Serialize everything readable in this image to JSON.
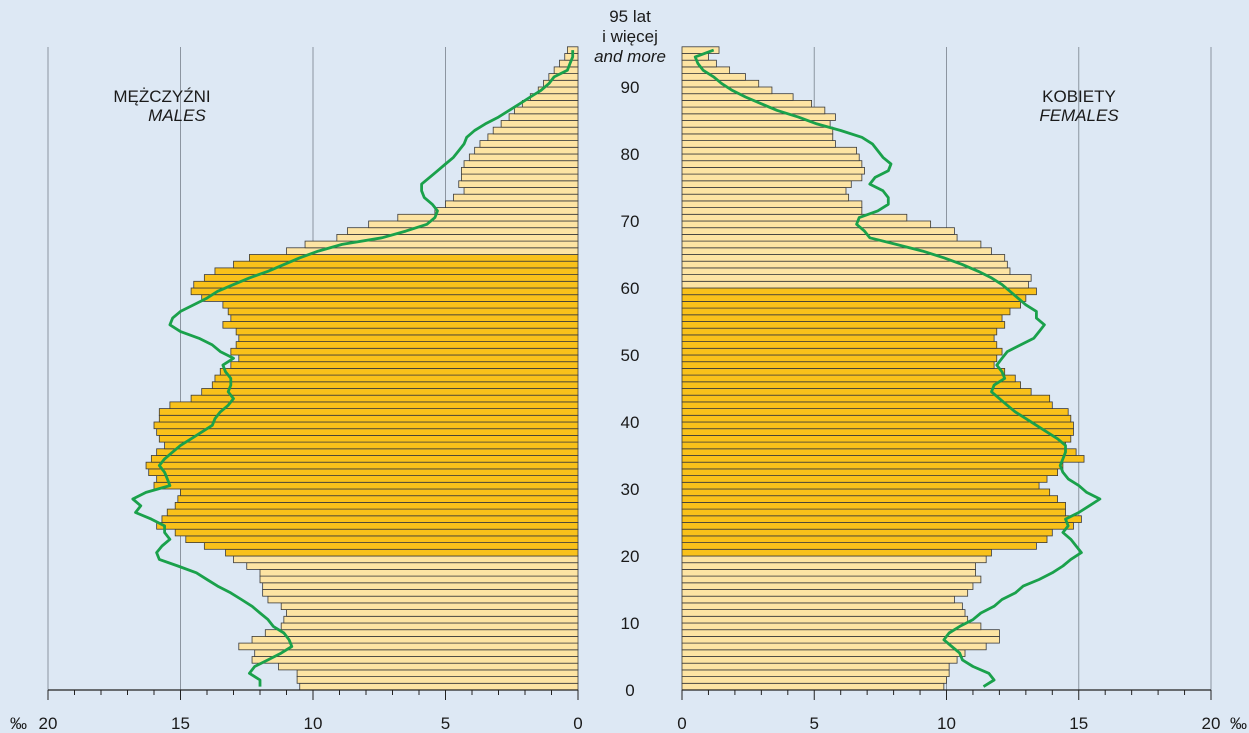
{
  "chart_data": {
    "type": "bar",
    "subtype": "population-pyramid",
    "age_unit": "single years of age",
    "value_unit": "‰",
    "males": {
      "title": "MĘŻCZYŹNI",
      "subtitle": "MALES",
      "values": [
        10.5,
        10.6,
        10.6,
        11.3,
        12.3,
        12.2,
        12.8,
        12.3,
        11.8,
        11.2,
        11.1,
        11.0,
        11.2,
        11.7,
        11.9,
        11.9,
        12.0,
        12.0,
        12.5,
        13.0,
        13.3,
        14.1,
        14.8,
        15.2,
        15.9,
        15.7,
        15.5,
        15.2,
        15.1,
        15.0,
        16.0,
        15.9,
        16.2,
        16.3,
        16.1,
        15.9,
        15.6,
        15.8,
        15.9,
        16.0,
        15.8,
        15.8,
        15.4,
        14.6,
        14.2,
        13.8,
        13.7,
        13.5,
        13.1,
        12.8,
        13.1,
        12.9,
        12.8,
        12.9,
        13.4,
        13.1,
        13.2,
        13.4,
        14.2,
        14.6,
        14.5,
        14.1,
        13.7,
        13.0,
        12.4,
        11.0,
        10.3,
        9.1,
        8.7,
        7.9,
        6.8,
        5.4,
        5.0,
        4.7,
        4.3,
        4.5,
        4.4,
        4.4,
        4.3,
        4.1,
        3.9,
        3.7,
        3.4,
        3.2,
        2.9,
        2.6,
        2.4,
        2.1,
        1.8,
        1.5,
        1.3,
        1.1,
        0.9,
        0.7,
        0.5,
        0.4
      ],
      "highlight_from": 20,
      "highlight_to": 64
    },
    "females": {
      "title": "KOBIETY",
      "subtitle": "FEMALES",
      "values": [
        9.9,
        10.0,
        10.1,
        10.1,
        10.4,
        10.7,
        11.5,
        12.0,
        12.0,
        11.3,
        10.8,
        10.7,
        10.6,
        10.3,
        10.8,
        11.0,
        11.3,
        11.1,
        11.1,
        11.5,
        11.7,
        13.4,
        13.8,
        14.0,
        14.8,
        15.1,
        14.5,
        14.5,
        14.2,
        13.9,
        13.5,
        13.8,
        14.2,
        14.4,
        15.2,
        14.9,
        14.5,
        14.7,
        14.8,
        14.8,
        14.7,
        14.6,
        14.0,
        13.9,
        13.2,
        12.8,
        12.6,
        12.2,
        11.8,
        11.9,
        12.1,
        11.9,
        11.8,
        11.9,
        12.2,
        12.1,
        12.4,
        12.8,
        13.0,
        13.4,
        13.1,
        13.2,
        12.4,
        12.3,
        12.2,
        11.7,
        11.3,
        10.4,
        10.3,
        9.4,
        8.5,
        6.8,
        6.8,
        6.3,
        6.2,
        6.4,
        6.8,
        6.9,
        6.8,
        6.7,
        6.6,
        5.8,
        5.7,
        5.7,
        5.6,
        5.8,
        5.4,
        4.9,
        4.2,
        3.4,
        2.9,
        2.4,
        1.8,
        1.3,
        1.0,
        1.4
      ],
      "highlight_from": 20,
      "highlight_to": 59
    },
    "comparison_line": {
      "color": "#1aa14b",
      "male_values": [
        12.0,
        12.0,
        12.4,
        12.2,
        11.7,
        11.2,
        10.8,
        10.9,
        11.1,
        11.5,
        11.7,
        12.0,
        12.3,
        12.7,
        13.1,
        13.6,
        14.0,
        14.4,
        15.1,
        15.8,
        15.9,
        15.7,
        15.4,
        15.6,
        15.6,
        16.1,
        16.7,
        16.5,
        16.8,
        16.3,
        15.4,
        15.5,
        15.6,
        15.8,
        15.6,
        15.3,
        15.0,
        14.6,
        14.2,
        13.8,
        13.7,
        13.5,
        13.2,
        13.0,
        13.2,
        13.1,
        13.1,
        13.3,
        13.4,
        13.0,
        13.5,
        13.8,
        14.3,
        15.0,
        15.4,
        15.3,
        15.0,
        14.5,
        14.0,
        13.6,
        13.0,
        12.4,
        11.7,
        11.1,
        10.5,
        9.8,
        8.9,
        7.4,
        6.5,
        5.7,
        5.4,
        5.3,
        5.5,
        5.8,
        5.9,
        5.9,
        5.6,
        5.3,
        5.0,
        4.7,
        4.5,
        4.3,
        4.2,
        3.9,
        3.5,
        3.0,
        2.6,
        2.2,
        1.8,
        1.4,
        1.1,
        0.9,
        0.4,
        0.3,
        0.2,
        0.2
      ],
      "female_values": [
        11.4,
        11.8,
        11.6,
        11.0,
        10.6,
        10.5,
        10.2,
        9.9,
        10.1,
        10.5,
        11.0,
        11.3,
        11.8,
        12.1,
        12.6,
        12.9,
        13.5,
        14.0,
        14.4,
        14.7,
        15.1,
        14.9,
        14.7,
        14.4,
        14.6,
        14.5,
        15.0,
        15.4,
        15.8,
        15.3,
        15.0,
        14.6,
        14.4,
        14.3,
        14.4,
        14.5,
        14.5,
        14.2,
        13.8,
        13.4,
        13.0,
        12.6,
        12.3,
        12.0,
        11.7,
        11.8,
        12.2,
        12.1,
        11.9,
        12.1,
        12.3,
        12.8,
        13.3,
        13.5,
        13.7,
        13.4,
        13.4,
        13.0,
        12.7,
        12.4,
        12.1,
        11.7,
        11.2,
        10.6,
        9.9,
        9.1,
        8.1,
        7.1,
        6.9,
        6.6,
        6.7,
        7.4,
        7.8,
        7.8,
        7.6,
        7.1,
        7.3,
        7.8,
        7.9,
        7.6,
        7.4,
        7.2,
        6.8,
        6.0,
        5.1,
        4.4,
        3.6,
        3.0,
        2.4,
        1.9,
        1.5,
        1.2,
        0.8,
        0.6,
        0.5,
        1.2
      ]
    },
    "age_ticks": [
      "0",
      "10",
      "20",
      "30",
      "40",
      "50",
      "60",
      "70",
      "80",
      "90"
    ],
    "top_label": {
      "line1": "95 lat",
      "line2": "i więcej",
      "line3": "and more"
    },
    "x_ticks_left": [
      "20",
      "15",
      "10",
      "5",
      "0"
    ],
    "x_ticks_right": [
      "0",
      "5",
      "10",
      "15",
      "20"
    ],
    "unit_label": "‰",
    "xlim": [
      0,
      20
    ],
    "grid": true,
    "colors": {
      "background": "#dde8f4",
      "bar_light": "#fde4a3",
      "bar_highlight": "#f9c11a",
      "bar_stroke": "#3a3a3a",
      "grid": "#8c95a0"
    }
  }
}
